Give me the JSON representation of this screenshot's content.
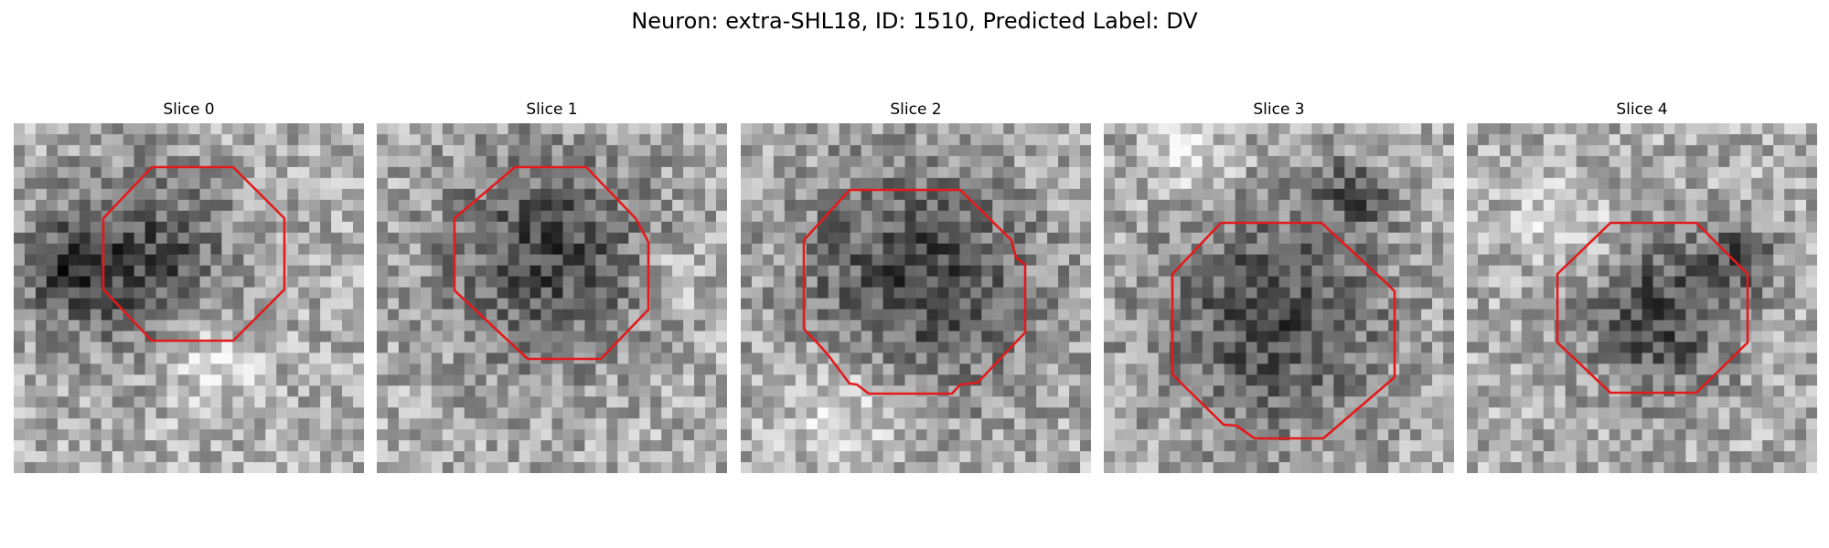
{
  "figure": {
    "title": "Neuron: extra-SHL18, ID: 1510, Predicted Label: DV"
  },
  "panels": [
    {
      "title": "Slice 0",
      "outline_color": "#e31a1c"
    },
    {
      "title": "Slice 1",
      "outline_color": "#e31a1c"
    },
    {
      "title": "Slice 2",
      "outline_color": "#e31a1c"
    },
    {
      "title": "Slice 3",
      "outline_color": "#e31a1c"
    },
    {
      "title": "Slice 4",
      "outline_color": "#e31a1c"
    }
  ],
  "colormap": "gray"
}
